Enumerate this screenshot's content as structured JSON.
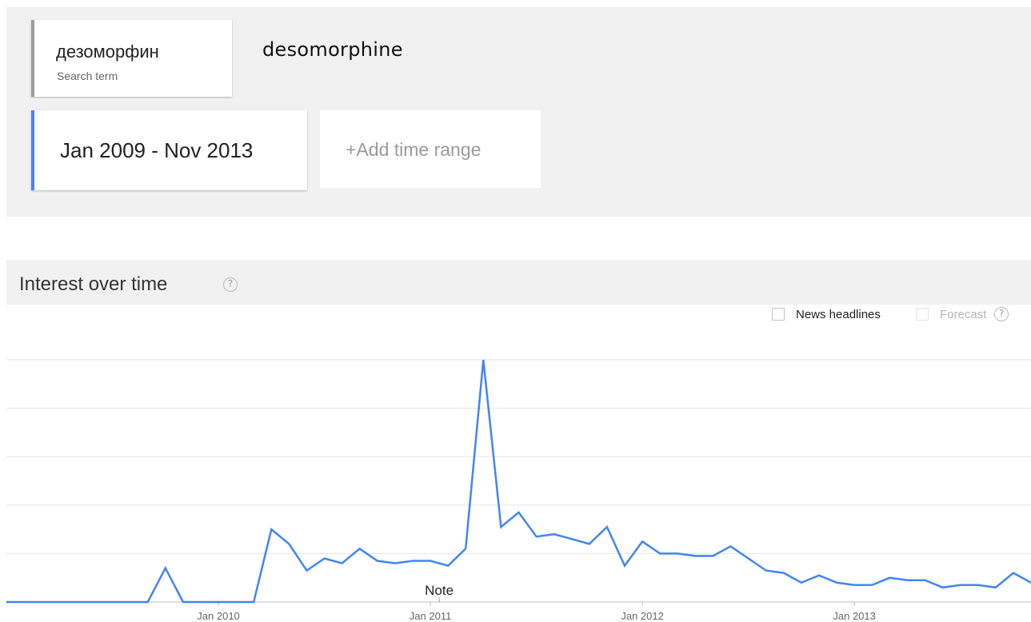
{
  "search": {
    "term": "дезоморфин",
    "term_sublabel": "Search term",
    "translation": "desomorphine"
  },
  "time_range": {
    "label": "Jan 2009 - Nov 2013",
    "add_label": "+Add time range"
  },
  "section": {
    "title": "Interest over time",
    "help_glyph": "?"
  },
  "options": {
    "news_headlines": "News headlines",
    "forecast": "Forecast",
    "help_glyph": "?"
  },
  "colors": {
    "series": "#4285f4",
    "range_accent": "#4285f4",
    "term_accent": "#9e9e9e",
    "panel_bg": "#f1f1f1"
  },
  "chart_data": {
    "type": "line",
    "x_ticks": [
      "Jan 2010",
      "Jan 2011",
      "Jan 2012",
      "Jan 2013"
    ],
    "tick_month_index": [
      12,
      24,
      36,
      48
    ],
    "note": "Note",
    "note_month_index": 24.5,
    "ylim": [
      0,
      100
    ],
    "grid": true,
    "values": [
      0,
      0,
      0,
      0,
      0,
      0,
      0,
      0,
      0,
      14,
      0,
      0,
      0,
      0,
      0,
      30,
      24,
      13,
      18,
      16,
      22,
      17,
      16,
      17,
      17,
      15,
      22,
      100,
      31,
      37,
      27,
      28,
      26,
      24,
      31,
      15,
      25,
      20,
      20,
      19,
      19,
      23,
      18,
      13,
      12,
      8,
      11,
      8,
      7,
      7,
      10,
      9,
      9,
      6,
      7,
      7,
      6,
      12,
      8
    ]
  }
}
